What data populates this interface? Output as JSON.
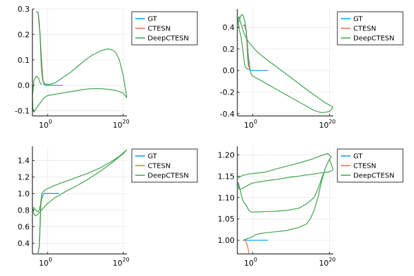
{
  "colors": {
    "GT": "#009AFA",
    "CTESN": "#E26F46",
    "DeepCTESN": "#3EA44E",
    "axis": "#000000",
    "grid": "#e6e6e6"
  },
  "chart_data": [
    {
      "type": "line",
      "xscale": "log10",
      "xlim_exp": [
        -4,
        21
      ],
      "ylim": [
        -0.12,
        0.3
      ],
      "xticks": [
        {
          "exp": 0,
          "label": "10",
          "sup": "0"
        },
        {
          "exp": 20,
          "label": "10",
          "sup": "20"
        }
      ],
      "yticks": [
        -0.1,
        0.0,
        0.1,
        0.2,
        0.3
      ],
      "ytick_labels": [
        "-0.1",
        "0.0",
        "0.1",
        "0.2",
        "0.3"
      ],
      "grid": true,
      "legend": "top-right-outside",
      "series": [
        {
          "name": "GT",
          "x_exp": [
            -3,
            -2.5,
            -2,
            -1.5,
            -1.2,
            -1.0,
            -0.8,
            -0.5,
            0,
            2,
            4
          ],
          "y": [
            0.29,
            0.285,
            0.2,
            0.08,
            0.02,
            0.005,
            0.002,
            0.0,
            0.0,
            0.0,
            0.0
          ]
        },
        {
          "name": "CTESN",
          "x_exp": [
            -3,
            -2.5,
            -2,
            -1.5,
            -1.2,
            -1.0,
            -0.8,
            -0.5
          ],
          "y": [
            0.29,
            0.285,
            0.2,
            0.07,
            0.02,
            0.008,
            0.006,
            0.005
          ]
        },
        {
          "name": "DeepCTESN",
          "x_exp": [
            -3,
            -2.5,
            -2.2,
            -2.0,
            -1.8,
            -1.6,
            -1.3,
            -1.0,
            -0.5,
            0.5,
            2,
            4,
            6,
            8,
            10,
            12,
            14,
            15,
            16,
            17,
            18,
            19,
            20,
            21,
            20,
            18,
            16,
            14,
            12,
            10,
            8,
            6,
            4,
            2,
            0,
            -1,
            -2,
            -3,
            -3.6,
            -3.9,
            -4,
            -3.6,
            -3.0,
            -2.4,
            -2.0,
            -1.7,
            -1.5
          ],
          "y": [
            0.29,
            0.285,
            0.25,
            0.2,
            0.12,
            0.06,
            0.02,
            0.01,
            0.005,
            0.003,
            0.01,
            0.03,
            0.05,
            0.075,
            0.1,
            0.12,
            0.135,
            0.14,
            0.143,
            0.14,
            0.13,
            0.1,
            0.04,
            -0.05,
            -0.03,
            -0.02,
            -0.015,
            -0.013,
            -0.013,
            -0.015,
            -0.02,
            -0.025,
            -0.03,
            -0.035,
            -0.04,
            -0.05,
            -0.07,
            -0.09,
            -0.105,
            -0.09,
            -0.04,
            0.02,
            0.035,
            0.03,
            0.01,
            0.005,
            0.003
          ]
        }
      ]
    },
    {
      "type": "line",
      "xscale": "log10",
      "xlim_exp": [
        -4,
        21
      ],
      "ylim": [
        -0.42,
        0.57
      ],
      "xticks": [
        {
          "exp": 0,
          "label": "10",
          "sup": "0"
        },
        {
          "exp": 20,
          "label": "10",
          "sup": "20"
        }
      ],
      "yticks": [
        -0.4,
        -0.2,
        0.0,
        0.2,
        0.4
      ],
      "ytick_labels": [
        "-0.4",
        "-0.2",
        "0.0",
        "0.2",
        "0.4"
      ],
      "grid": true,
      "legend": "top-right-outside",
      "series": [
        {
          "name": "GT",
          "x_exp": [
            -2.5,
            -2.0,
            -1.8,
            -1.5,
            -1.2,
            -1.0,
            -0.8,
            -0.5,
            0,
            2,
            4
          ],
          "y": [
            0.42,
            0.42,
            0.4,
            0.3,
            0.15,
            0.05,
            0.01,
            0.0,
            0.0,
            0.0,
            0.0
          ]
        },
        {
          "name": "CTESN",
          "x_exp": [
            -2.5,
            -2.0,
            -1.7,
            -1.5,
            -1.3,
            -1.1,
            -0.9
          ],
          "y": [
            0.42,
            0.41,
            0.36,
            0.25,
            0.1,
            0.04,
            0.03
          ]
        },
        {
          "name": "DeepCTESN",
          "x_exp": [
            -3.5,
            -3.2,
            -2.8,
            -2.4,
            -2.0,
            -1.6,
            -1.2,
            -0.6,
            0.0,
            2.0,
            5.0,
            8.0,
            11.0,
            14.0,
            16.0,
            18.0,
            20.0,
            21.0,
            20.5,
            19.0,
            17.0,
            15.0,
            12.0,
            9.0,
            6.0,
            3.0,
            1.0,
            -1.0,
            -2.0,
            -2.6,
            -3.2,
            -3.6,
            -3.8,
            -3.6,
            -3.0,
            -2.6,
            -2.3,
            -2.0,
            -1.6,
            -1.3,
            -1.0
          ],
          "y": [
            0.45,
            0.5,
            0.52,
            0.5,
            0.45,
            0.33,
            0.15,
            -0.02,
            -0.05,
            -0.09,
            -0.15,
            -0.21,
            -0.27,
            -0.33,
            -0.37,
            -0.39,
            -0.38,
            -0.34,
            -0.33,
            -0.3,
            -0.25,
            -0.2,
            -0.12,
            -0.04,
            0.04,
            0.12,
            0.18,
            0.26,
            0.32,
            0.38,
            0.45,
            0.5,
            0.47,
            0.4,
            0.3,
            0.2,
            0.1,
            0.04,
            0.02,
            0.015,
            0.01
          ]
        }
      ]
    },
    {
      "type": "line",
      "xscale": "log10",
      "xlim_exp": [
        -4,
        21
      ],
      "ylim": [
        0.27,
        1.57
      ],
      "xticks": [
        {
          "exp": 0,
          "label": "10",
          "sup": "0"
        },
        {
          "exp": 20,
          "label": "10",
          "sup": "20"
        }
      ],
      "yticks": [
        0.4,
        0.6,
        0.8,
        1.0,
        1.2,
        1.4
      ],
      "ytick_labels": [
        "0.4",
        "0.6",
        "0.8",
        "1.0",
        "1.2",
        "1.4"
      ],
      "grid": true,
      "legend": "top-right-outside",
      "series": [
        {
          "name": "GT",
          "x_exp": [
            -2.5,
            -2.2,
            -2.0,
            -1.8,
            -1.5,
            -1.2,
            -1.0,
            -0.5,
            0,
            2,
            3
          ],
          "y": [
            0.28,
            0.35,
            0.6,
            0.9,
            0.95,
            0.98,
            1.0,
            1.0,
            1.0,
            1.0,
            1.0
          ]
        },
        {
          "name": "CTESN",
          "x_exp": [
            -2.5,
            -2.2,
            -2.0,
            -1.8,
            -1.6,
            -1.4
          ],
          "y": [
            0.28,
            0.35,
            0.6,
            0.85,
            0.92,
            0.95
          ]
        },
        {
          "name": "DeepCTESN",
          "x_exp": [
            -2.5,
            -2.2,
            -2.0,
            -1.8,
            -1.5,
            -1.0,
            0.0,
            2.0,
            5.0,
            8.0,
            11.0,
            14.0,
            17.0,
            19.0,
            21.0,
            20.0,
            17.0,
            14.0,
            11.0,
            8.0,
            5.0,
            2.0,
            0.0,
            -1.0,
            -2.0,
            -3.0,
            -3.5,
            -3.8,
            -3.7,
            -3.4,
            -3.0,
            -2.6,
            -2.2,
            -1.9,
            -1.6
          ],
          "y": [
            0.28,
            0.35,
            0.6,
            0.9,
            1.0,
            1.03,
            1.06,
            1.1,
            1.15,
            1.2,
            1.25,
            1.31,
            1.39,
            1.45,
            1.53,
            1.48,
            1.37,
            1.27,
            1.18,
            1.1,
            1.03,
            0.95,
            0.88,
            0.83,
            0.78,
            0.73,
            0.74,
            0.8,
            0.83,
            0.82,
            0.79,
            0.78,
            0.8,
            0.86,
            0.93
          ]
        }
      ]
    },
    {
      "type": "line",
      "xscale": "log10",
      "xlim_exp": [
        -4,
        21
      ],
      "ylim": [
        0.968,
        1.22
      ],
      "xticks": [
        {
          "exp": 0,
          "label": "10",
          "sup": "0"
        },
        {
          "exp": 20,
          "label": "10",
          "sup": "20"
        }
      ],
      "yticks": [
        1.0,
        1.05,
        1.1,
        1.15,
        1.2
      ],
      "ytick_labels": [
        "1.00",
        "1.05",
        "1.10",
        "1.15",
        "1.20"
      ],
      "grid": true,
      "legend": "top-right-outside",
      "series": [
        {
          "name": "GT",
          "x_exp": [
            -2.5,
            -2.0,
            -1.5,
            -1.0,
            0,
            2,
            4
          ],
          "y": [
            1.0,
            1.0,
            1.0,
            1.0,
            1.0,
            1.0,
            1.0
          ]
        },
        {
          "name": "CTESN",
          "x_exp": [
            -2.5,
            -2.0,
            -1.6,
            -1.3,
            -1.1,
            -1.0
          ],
          "y": [
            1.0,
            1.0,
            0.995,
            0.985,
            0.975,
            0.97
          ]
        },
        {
          "name": "DeepCTESN",
          "x_exp": [
            -2.5,
            -2.0,
            -1.0,
            0.0,
            0.5,
            1.5,
            3,
            6,
            9,
            12,
            14,
            15,
            16,
            17,
            18,
            19,
            20,
            21,
            20,
            18,
            16,
            14,
            12,
            10,
            8,
            6,
            4,
            2,
            0,
            -1,
            -2,
            -3,
            -3.6,
            -3.8,
            -3.6,
            -3.2,
            -2.8,
            -2.4,
            -2.0,
            -1.6,
            -1.3,
            -1.0,
            -0.5,
            0.5,
            3,
            6,
            9,
            12,
            14,
            16,
            17,
            18,
            19,
            20,
            20.5,
            19.5,
            17.5,
            15.5,
            12.5,
            9.5,
            6.5,
            3.5,
            1.0,
            -1.0,
            -2.5,
            -3.5,
            -3.8
          ],
          "y": [
            1.0,
            1.002,
            1.005,
            1.008,
            1.012,
            1.015,
            1.017,
            1.02,
            1.023,
            1.03,
            1.038,
            1.05,
            1.07,
            1.1,
            1.14,
            1.17,
            1.19,
            1.165,
            1.16,
            1.158,
            1.155,
            1.153,
            1.15,
            1.148,
            1.145,
            1.142,
            1.14,
            1.137,
            1.134,
            1.13,
            1.125,
            1.12,
            1.12,
            1.135,
            1.13,
            1.115,
            1.1,
            1.09,
            1.085,
            1.08,
            1.075,
            1.07,
            1.066,
            1.066,
            1.067,
            1.068,
            1.07,
            1.075,
            1.085,
            1.1,
            1.12,
            1.145,
            1.17,
            1.19,
            1.195,
            1.203,
            1.197,
            1.19,
            1.182,
            1.175,
            1.168,
            1.16,
            1.157,
            1.155,
            1.152,
            1.148,
            1.145
          ]
        }
      ]
    }
  ]
}
